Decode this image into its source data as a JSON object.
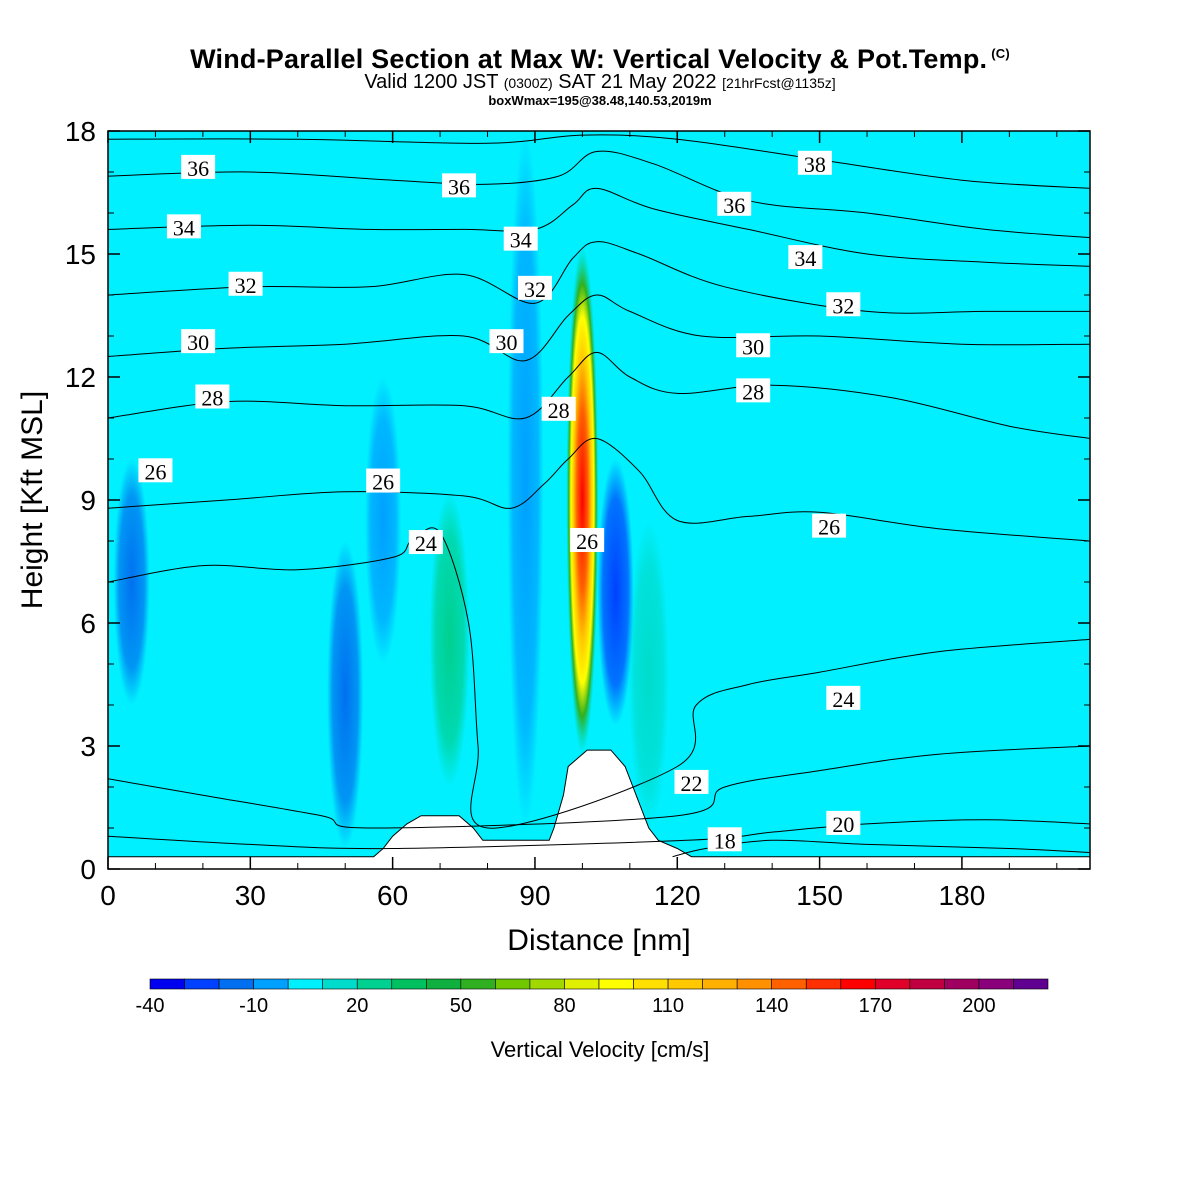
{
  "header": {
    "title": "Wind-Parallel Section at Max W: Vertical Velocity & Pot.Temp.",
    "title_tag": "(C)",
    "subtitle_a": "Valid 1200 JST",
    "subtitle_b": "(0300Z)",
    "subtitle_c": "SAT 21 May 2022",
    "subtitle_d": "[21hrFcst@1135z]",
    "subtitle2": "boxWmax=195@38.48,140.53,2019m"
  },
  "chart_data": {
    "type": "heatmap",
    "xlabel": "Distance [nm]",
    "ylabel": "Height [Kft MSL]",
    "xlim": [
      0,
      207
    ],
    "ylim": [
      0,
      18
    ],
    "x_ticks": [
      "0",
      "30",
      "60",
      "90",
      "120",
      "150",
      "180"
    ],
    "y_ticks": [
      "0",
      "3",
      "6",
      "9",
      "12",
      "15",
      "18"
    ],
    "colorbar": {
      "title": "Vertical Velocity [cm/s]",
      "tick_labels": [
        "-40",
        "-10",
        "20",
        "50",
        "80",
        "110",
        "140",
        "170",
        "200"
      ],
      "levels": [
        -40,
        -30,
        -20,
        -10,
        0,
        10,
        20,
        30,
        40,
        50,
        60,
        70,
        80,
        90,
        100,
        110,
        120,
        130,
        140,
        150,
        160,
        170,
        180,
        190,
        200,
        210
      ],
      "colors": [
        "#0000f0",
        "#0040ff",
        "#0070f0",
        "#00a0ff",
        "#00f0ff",
        "#00dccc",
        "#00d090",
        "#00c060",
        "#10b040",
        "#30b020",
        "#70c800",
        "#a0d800",
        "#e0f000",
        "#ffff00",
        "#ffe000",
        "#ffc800",
        "#ffb000",
        "#ff9000",
        "#ff6000",
        "#ff3000",
        "#ff0000",
        "#e0002a",
        "#c00040",
        "#a00060",
        "#8a007a",
        "#600090"
      ]
    },
    "background_color": "#00f0ff",
    "velocity_features": [
      {
        "kind": "updraft",
        "x": 100,
        "z_bottom": 2.8,
        "z_top": 15.2,
        "peak": 195,
        "color": "#ff0000"
      },
      {
        "kind": "updraft",
        "x": 72,
        "z_bottom": 2.0,
        "z_top": 9.2,
        "peak": 25,
        "color": "#00d090"
      },
      {
        "kind": "updraft",
        "x": 114,
        "z_bottom": 1.0,
        "z_top": 8.5,
        "peak": 20,
        "color": "#00dccc"
      },
      {
        "kind": "downdraft",
        "x": 107,
        "z_bottom": 3.5,
        "z_top": 10.0,
        "peak": -35,
        "color": "#0040ff"
      },
      {
        "kind": "downdraft",
        "x": 50,
        "z_bottom": 0.5,
        "z_top": 8.0,
        "peak": -30,
        "color": "#0070f0"
      },
      {
        "kind": "downdraft",
        "x": 58,
        "z_bottom": 5.0,
        "z_top": 12.0,
        "peak": -20,
        "color": "#00a0ff"
      },
      {
        "kind": "downdraft",
        "x": 5,
        "z_bottom": 4.0,
        "z_top": 10.0,
        "peak": -20,
        "color": "#0070f0"
      },
      {
        "kind": "downdraft",
        "x": 88,
        "z_bottom": 1.0,
        "z_top": 18.0,
        "peak": -10,
        "color": "#00a0ff"
      }
    ],
    "terrain_kft": [
      [
        0,
        0.3
      ],
      [
        56,
        0.3
      ],
      [
        58,
        0.5
      ],
      [
        60,
        0.8
      ],
      [
        63,
        1.1
      ],
      [
        66,
        1.3
      ],
      [
        74,
        1.3
      ],
      [
        77,
        1.0
      ],
      [
        79,
        0.7
      ],
      [
        93,
        0.7
      ],
      [
        94,
        1.0
      ],
      [
        96,
        1.8
      ],
      [
        97,
        2.5
      ],
      [
        101,
        2.9
      ],
      [
        106,
        2.9
      ],
      [
        109,
        2.5
      ],
      [
        112,
        1.6
      ],
      [
        114,
        1.0
      ],
      [
        116,
        0.7
      ],
      [
        120,
        0.5
      ],
      [
        123,
        0.3
      ],
      [
        207,
        0.3
      ]
    ],
    "theta_contours": [
      {
        "value": 18,
        "label": "18",
        "points": [
          [
            119,
            0.3
          ],
          [
            126,
            0.5
          ],
          [
            140,
            0.7
          ],
          [
            160,
            0.6
          ],
          [
            190,
            0.5
          ],
          [
            207,
            0.4
          ]
        ]
      },
      {
        "value": 20,
        "label": "20",
        "points": [
          [
            0,
            0.8
          ],
          [
            30,
            0.6
          ],
          [
            60,
            0.5
          ],
          [
            122,
            0.7
          ],
          [
            140,
            0.9
          ],
          [
            160,
            1.1
          ],
          [
            185,
            1.2
          ],
          [
            207,
            1.1
          ]
        ]
      },
      {
        "value": 22,
        "label": "22",
        "points": [
          [
            0,
            2.2
          ],
          [
            20,
            1.8
          ],
          [
            45,
            1.3
          ],
          [
            56,
            1.0
          ],
          [
            120,
            1.3
          ],
          [
            130,
            2.0
          ],
          [
            150,
            2.4
          ],
          [
            175,
            2.8
          ],
          [
            207,
            3.0
          ]
        ]
      },
      {
        "value": 24,
        "label": "24",
        "points": [
          [
            0,
            7.0
          ],
          [
            20,
            7.4
          ],
          [
            40,
            7.3
          ],
          [
            60,
            7.6
          ],
          [
            64,
            8.0
          ],
          [
            70,
            8.2
          ],
          [
            76,
            6.0
          ],
          [
            78,
            3.0
          ],
          [
            80,
            1.0
          ],
          [
            120,
            2.5
          ],
          [
            124,
            4.0
          ],
          [
            135,
            4.5
          ],
          [
            150,
            4.8
          ],
          [
            175,
            5.3
          ],
          [
            207,
            5.6
          ]
        ]
      },
      {
        "value": 26,
        "label": "26",
        "points": [
          [
            0,
            8.8
          ],
          [
            25,
            9.0
          ],
          [
            50,
            9.2
          ],
          [
            75,
            9.1
          ],
          [
            85,
            8.8
          ],
          [
            92,
            9.4
          ],
          [
            97,
            10.0
          ],
          [
            103,
            10.5
          ],
          [
            112,
            9.7
          ],
          [
            120,
            8.5
          ],
          [
            135,
            8.6
          ],
          [
            150,
            8.7
          ],
          [
            175,
            8.3
          ],
          [
            207,
            8.0
          ]
        ]
      },
      {
        "value": 28,
        "label": "28",
        "points": [
          [
            0,
            11.0
          ],
          [
            25,
            11.4
          ],
          [
            50,
            11.3
          ],
          [
            75,
            11.3
          ],
          [
            88,
            11.0
          ],
          [
            97,
            12.0
          ],
          [
            103,
            12.6
          ],
          [
            110,
            12.0
          ],
          [
            120,
            11.6
          ],
          [
            140,
            11.8
          ],
          [
            165,
            11.5
          ],
          [
            190,
            10.8
          ],
          [
            207,
            10.5
          ]
        ]
      },
      {
        "value": 30,
        "label": "30",
        "points": [
          [
            0,
            12.5
          ],
          [
            25,
            12.7
          ],
          [
            50,
            12.8
          ],
          [
            75,
            13.0
          ],
          [
            88,
            12.4
          ],
          [
            97,
            13.5
          ],
          [
            103,
            14.0
          ],
          [
            110,
            13.6
          ],
          [
            125,
            13.0
          ],
          [
            150,
            13.0
          ],
          [
            180,
            12.8
          ],
          [
            207,
            12.8
          ]
        ]
      },
      {
        "value": 32,
        "label": "32",
        "points": [
          [
            0,
            14.0
          ],
          [
            30,
            14.2
          ],
          [
            55,
            14.2
          ],
          [
            75,
            14.5
          ],
          [
            90,
            13.8
          ],
          [
            98,
            14.9
          ],
          [
            103,
            15.3
          ],
          [
            112,
            15.0
          ],
          [
            130,
            14.2
          ],
          [
            160,
            13.6
          ],
          [
            185,
            13.6
          ],
          [
            207,
            13.6
          ]
        ]
      },
      {
        "value": 34,
        "label": "34",
        "points": [
          [
            0,
            15.6
          ],
          [
            30,
            15.7
          ],
          [
            55,
            15.6
          ],
          [
            75,
            15.6
          ],
          [
            90,
            15.6
          ],
          [
            98,
            16.2
          ],
          [
            103,
            16.6
          ],
          [
            115,
            16.1
          ],
          [
            135,
            15.6
          ],
          [
            160,
            15.0
          ],
          [
            185,
            14.8
          ],
          [
            207,
            14.7
          ]
        ]
      },
      {
        "value": 36,
        "label": "36",
        "points": [
          [
            0,
            16.9
          ],
          [
            30,
            17.0
          ],
          [
            60,
            16.8
          ],
          [
            80,
            16.7
          ],
          [
            95,
            16.9
          ],
          [
            103,
            17.5
          ],
          [
            115,
            17.2
          ],
          [
            135,
            16.3
          ],
          [
            160,
            16.0
          ],
          [
            185,
            15.6
          ],
          [
            207,
            15.4
          ]
        ]
      },
      {
        "value": 38,
        "label": "38",
        "points": [
          [
            0,
            17.8
          ],
          [
            40,
            17.8
          ],
          [
            80,
            17.7
          ],
          [
            100,
            17.9
          ],
          [
            120,
            17.8
          ],
          [
            150,
            17.3
          ],
          [
            180,
            16.8
          ],
          [
            207,
            16.6
          ]
        ]
      }
    ],
    "contour_labels": [
      {
        "text": "36",
        "x": 19,
        "y": 17.1
      },
      {
        "text": "34",
        "x": 16,
        "y": 15.65
      },
      {
        "text": "32",
        "x": 29,
        "y": 14.25
      },
      {
        "text": "30",
        "x": 19,
        "y": 12.85
      },
      {
        "text": "28",
        "x": 22,
        "y": 11.5
      },
      {
        "text": "26",
        "x": 10,
        "y": 9.7
      },
      {
        "text": "36",
        "x": 74,
        "y": 16.65
      },
      {
        "text": "34",
        "x": 87,
        "y": 15.35
      },
      {
        "text": "32",
        "x": 90,
        "y": 14.15
      },
      {
        "text": "30",
        "x": 84,
        "y": 12.85
      },
      {
        "text": "28",
        "x": 95,
        "y": 11.2
      },
      {
        "text": "26",
        "x": 58,
        "y": 9.45
      },
      {
        "text": "24",
        "x": 67,
        "y": 7.95
      },
      {
        "text": "26",
        "x": 101,
        "y": 8.0
      },
      {
        "text": "38",
        "x": 149,
        "y": 17.2
      },
      {
        "text": "36",
        "x": 132,
        "y": 16.2
      },
      {
        "text": "34",
        "x": 147,
        "y": 14.9
      },
      {
        "text": "32",
        "x": 155,
        "y": 13.75
      },
      {
        "text": "30",
        "x": 136,
        "y": 12.75
      },
      {
        "text": "28",
        "x": 136,
        "y": 11.65
      },
      {
        "text": "26",
        "x": 152,
        "y": 8.35
      },
      {
        "text": "24",
        "x": 155,
        "y": 4.15
      },
      {
        "text": "22",
        "x": 123,
        "y": 2.1
      },
      {
        "text": "20",
        "x": 155,
        "y": 1.1
      },
      {
        "text": "18",
        "x": 130,
        "y": 0.7
      }
    ]
  }
}
